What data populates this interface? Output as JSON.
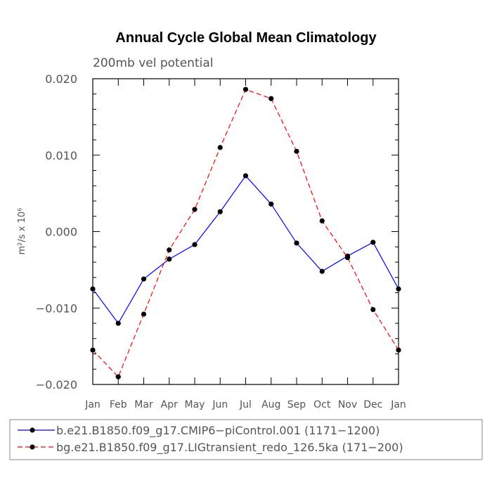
{
  "chart_data": {
    "type": "line",
    "title": "Annual Cycle Global Mean Climatology",
    "subtitle": "200mb vel potential",
    "xlabel": "",
    "ylabel": "m²/s x 10⁶",
    "ylim": [
      -0.02,
      0.02
    ],
    "yticks": [
      "0.020",
      "0.010",
      "0.000",
      "−0.010",
      "−0.020"
    ],
    "categories": [
      "Jan",
      "Feb",
      "Mar",
      "Apr",
      "May",
      "Jun",
      "Jul",
      "Aug",
      "Sep",
      "Oct",
      "Nov",
      "Dec",
      "Jan"
    ],
    "grid": false,
    "legend_position": "bottom",
    "series": [
      {
        "name": "b.e21.B1850.f09_g17.CMIP6−piControl.001 (1171−1200)",
        "color": "#0000ff",
        "dash": "solid",
        "values": [
          -0.0075,
          -0.012,
          -0.0062,
          -0.0036,
          -0.0017,
          0.0026,
          0.0073,
          0.0036,
          -0.0015,
          -0.0052,
          -0.0032,
          -0.0014,
          -0.0075
        ]
      },
      {
        "name": "bg.e21.B1850.f09_g17.LIGtransient_redo_126.5ka (171−200)",
        "color": "#ff0000",
        "dash": "dashed",
        "values": [
          -0.0155,
          -0.019,
          -0.0108,
          -0.0024,
          0.0029,
          0.011,
          0.0186,
          0.0174,
          0.0105,
          0.0014,
          -0.0034,
          -0.0102,
          -0.0155
        ]
      }
    ]
  }
}
